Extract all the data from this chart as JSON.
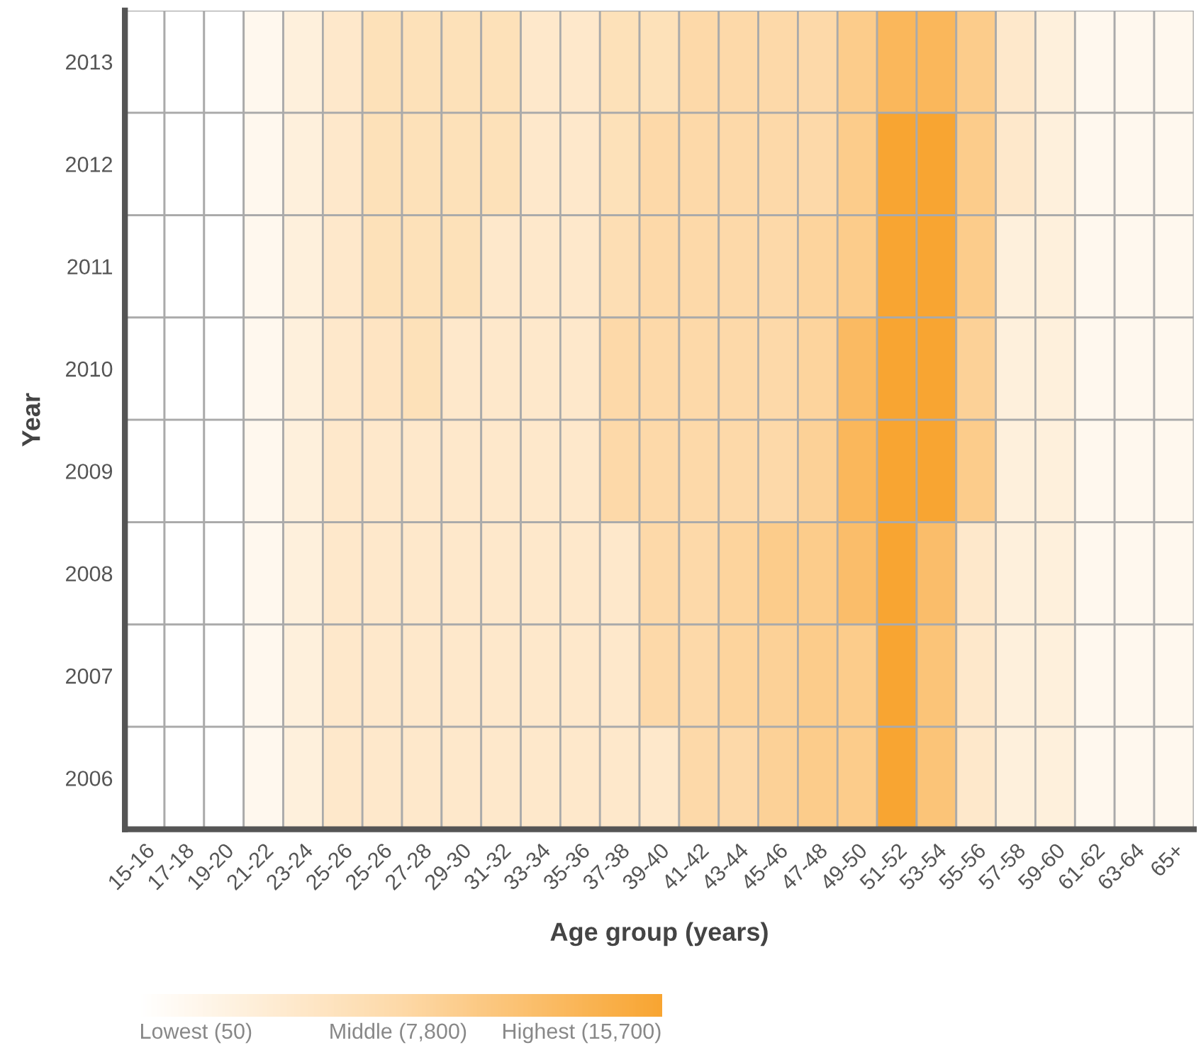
{
  "chart_data": {
    "type": "heatmap",
    "xlabel": "Age group (years)",
    "ylabel": "Year",
    "categories": [
      "15-16",
      "17-18",
      "19-20",
      "21-22",
      "23-24",
      "25-26",
      "25-26",
      "27-28",
      "29-30",
      "31-32",
      "33-34",
      "35-36",
      "37-38",
      "39-40",
      "41-42",
      "43-44",
      "45-46",
      "47-48",
      "49-50",
      "51-52",
      "53-54",
      "55-56",
      "57-58",
      "59-60",
      "61-62",
      "63-64",
      "65+"
    ],
    "y_categories": [
      "2013",
      "2012",
      "2011",
      "2010",
      "2009",
      "2008",
      "2007",
      "2006"
    ],
    "cells": [
      [
        100,
        100,
        100,
        1600,
        3200,
        4700,
        6300,
        6300,
        6300,
        6300,
        4700,
        4700,
        6300,
        6300,
        7800,
        7800,
        7800,
        7800,
        9800,
        13000,
        13000,
        9800,
        4700,
        3200,
        1600,
        1600,
        1600
      ],
      [
        100,
        100,
        100,
        1600,
        3200,
        4700,
        6300,
        6300,
        6300,
        6300,
        4700,
        4700,
        6300,
        7800,
        7800,
        7800,
        7800,
        7800,
        9800,
        15700,
        15700,
        9800,
        4700,
        3200,
        1600,
        1600,
        1600
      ],
      [
        100,
        100,
        100,
        1600,
        3200,
        4700,
        6300,
        6300,
        6300,
        4700,
        4700,
        4700,
        6800,
        7800,
        7800,
        7800,
        7800,
        8600,
        9800,
        15700,
        15700,
        9800,
        3200,
        3200,
        1600,
        1600,
        1600
      ],
      [
        100,
        100,
        100,
        1600,
        3200,
        4700,
        5500,
        6300,
        4700,
        4700,
        4700,
        4700,
        7800,
        7800,
        7800,
        7800,
        7800,
        8600,
        12500,
        15700,
        15700,
        9000,
        3200,
        3200,
        1600,
        1600,
        1600
      ],
      [
        100,
        100,
        100,
        1600,
        3200,
        4700,
        4700,
        4700,
        4700,
        4700,
        4700,
        4700,
        7800,
        7800,
        7800,
        7800,
        7800,
        9000,
        13000,
        15700,
        15700,
        9800,
        3200,
        3200,
        1600,
        1600,
        1600
      ],
      [
        100,
        100,
        100,
        1600,
        3200,
        4700,
        4700,
        4700,
        4700,
        4700,
        4700,
        4700,
        4700,
        7800,
        7800,
        8600,
        9800,
        9800,
        12000,
        15700,
        12000,
        4700,
        3200,
        3200,
        1600,
        1600,
        1600
      ],
      [
        100,
        100,
        100,
        1600,
        3200,
        4700,
        4700,
        4700,
        4700,
        4700,
        4700,
        4700,
        4700,
        7800,
        7800,
        8600,
        9000,
        9800,
        9800,
        15700,
        11000,
        4700,
        3200,
        3200,
        1600,
        1600,
        1600
      ],
      [
        100,
        100,
        100,
        1600,
        3200,
        4700,
        4700,
        4700,
        4700,
        4700,
        4700,
        4700,
        4700,
        4700,
        7800,
        7800,
        9000,
        9800,
        9800,
        15700,
        11000,
        4700,
        3200,
        3200,
        1600,
        1600,
        1600
      ]
    ],
    "clim": [
      50,
      15700
    ],
    "cticks": [
      {
        "value": 50,
        "label": "Lowest (50)"
      },
      {
        "value": 7800,
        "label": "Middle (7,800)"
      },
      {
        "value": 15700,
        "label": "Highest (15,700)"
      }
    ]
  }
}
